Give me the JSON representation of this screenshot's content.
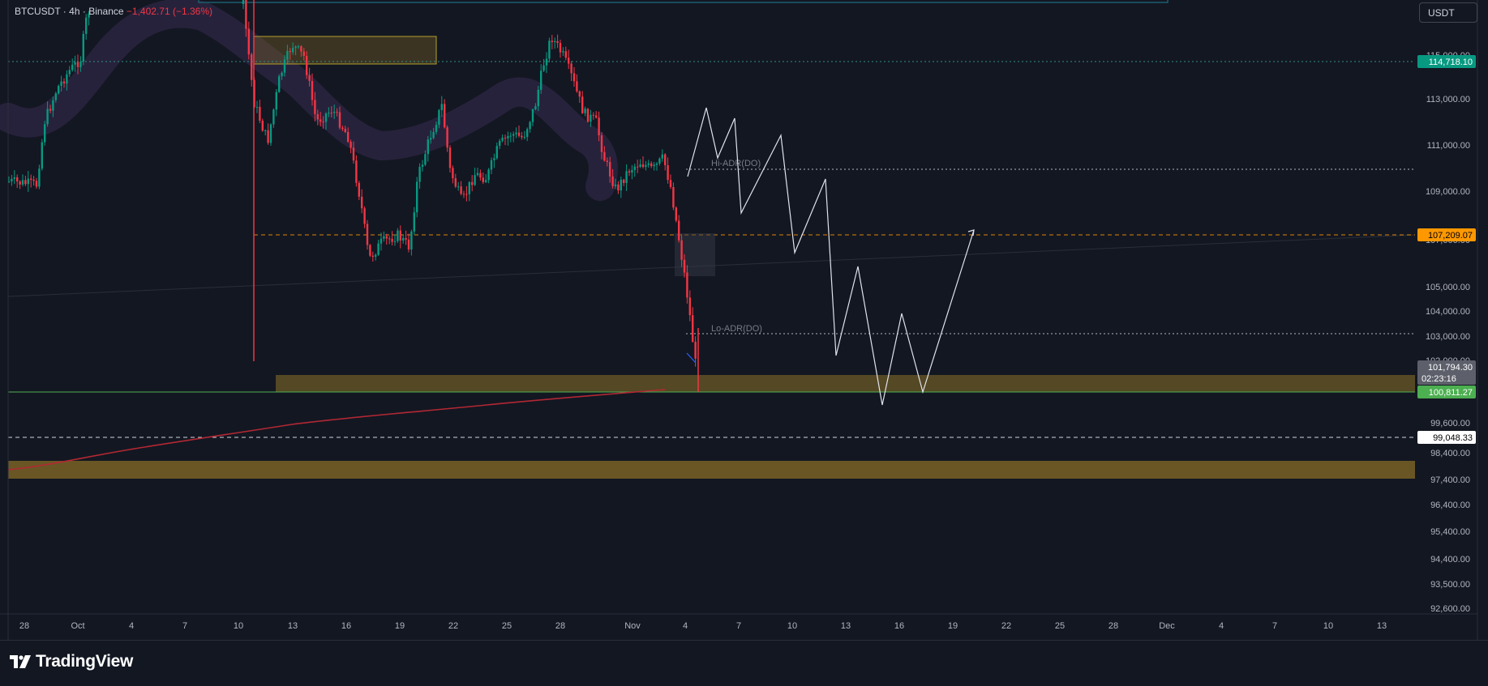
{
  "header": {
    "symbol": "BTCUSDT",
    "interval": "4h",
    "exchange": "Binance",
    "change": "−1,402.71 (−1.36%)"
  },
  "currency_button": "USDT",
  "brand": "TradingView",
  "chart_data": {
    "type": "candlestick",
    "symbol": "BTCUSDT",
    "interval": "4h",
    "y_axis_ticks": [
      "115,000.00",
      "113,000.00",
      "111,000.00",
      "109,000.00",
      "107,000.00",
      "105,000.00",
      "104,000.00",
      "103,000.00",
      "102,000.00",
      "99,600.00",
      "98,400.00",
      "97,400.00",
      "96,400.00",
      "95,400.00",
      "94,400.00",
      "93,500.00",
      "92,600.00"
    ],
    "x_axis_ticks": [
      "28",
      "Oct",
      "4",
      "7",
      "10",
      "13",
      "16",
      "19",
      "22",
      "25",
      "28",
      "Nov",
      "4",
      "7",
      "10",
      "13",
      "16",
      "19",
      "22",
      "25",
      "28",
      "Dec",
      "4",
      "7",
      "10",
      "13"
    ],
    "price_labels": [
      {
        "label": "114,718.10",
        "color": "#089981",
        "text_color": "#ffffff"
      },
      {
        "label": "107,209.07",
        "color": "#ff9800",
        "text_color": "#000000"
      },
      {
        "label": "101,794.30",
        "sub": "02:23:16",
        "color": "#5d606b",
        "text_color": "#ffffff"
      },
      {
        "label": "100,811.27",
        "color": "#4caf50",
        "text_color": "#ffffff"
      },
      {
        "label": "99,048.33",
        "color": "#ffffff",
        "text_color": "#000000"
      }
    ],
    "annotations": [
      "Hi-ADR(DO)",
      "Lo-ADR(DO)"
    ],
    "key_levels": {
      "horizontal_line": 114718.1,
      "dashed_orange": 107209.07,
      "support": 100811.27,
      "dashed_white": 99048.33
    },
    "projected_path": "zigzag rally to ~112,700 then decline to ~100,000 and rebound toward ~107,200",
    "up_color": "#089981",
    "down_color": "#f23645",
    "zone_color": "#7a6226"
  }
}
